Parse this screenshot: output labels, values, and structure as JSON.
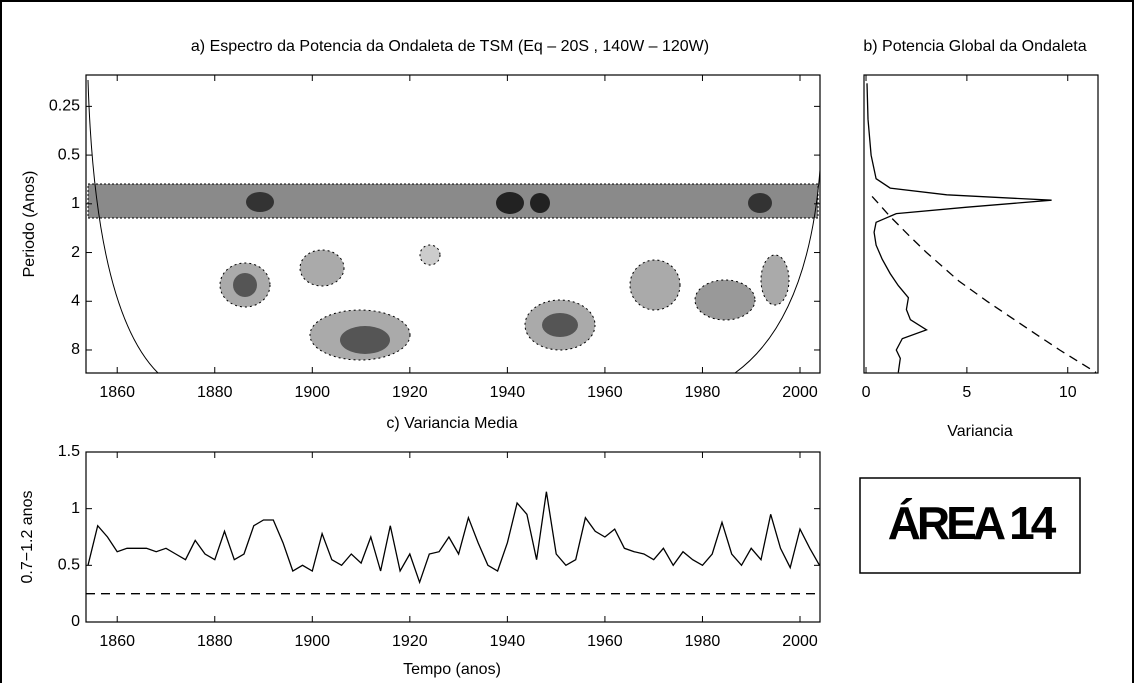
{
  "chart_data": [
    {
      "type": "contour",
      "title": "a) Espectro da Potencia da Ondaleta de TSM (Eq – 20S , 140W – 120W)",
      "ylabel": "Periodo (Anos)",
      "xlim": [
        1853.6,
        2004.1
      ],
      "xticks": [
        1860,
        1880,
        1900,
        1920,
        1940,
        1960,
        1980,
        2000
      ],
      "ylim": [
        0.16,
        11.1
      ],
      "yticks": [
        0.25,
        0.5,
        1,
        2,
        4,
        8
      ],
      "log_y": true,
      "y_inverted": true
    },
    {
      "type": "line",
      "title": "b) Potencia Global da Ondaleta",
      "xlabel": "Variancia",
      "xlim": [
        -0.1,
        11.5
      ],
      "xticks": [
        0,
        5,
        10
      ],
      "ylim": [
        0.16,
        11.1
      ],
      "log_y": true,
      "y_inverted": true,
      "series": [
        {
          "color": "#000000",
          "dashed": false,
          "x": [
            0.05,
            0.1,
            0.25,
            0.5,
            1.2,
            4,
            9.2,
            5,
            1.5,
            0.5,
            0.4,
            0.5,
            0.8,
            1.2,
            1.6,
            2.1,
            2.0,
            2.2,
            3.0,
            1.8,
            1.5,
            1.7,
            1.6
          ],
          "y": [
            0.18,
            0.3,
            0.5,
            0.7,
            0.8,
            0.88,
            0.95,
            1.05,
            1.15,
            1.3,
            1.5,
            1.8,
            2.2,
            2.7,
            3.2,
            3.8,
            4.5,
            5.2,
            6,
            6.8,
            8,
            9,
            11
          ]
        },
        {
          "color": "#000000",
          "dashed": true,
          "x": [
            0.3,
            1.2,
            2.2,
            3,
            4.6,
            6,
            8.1,
            9.6,
            11.4
          ],
          "y": [
            0.9,
            1.2,
            1.6,
            2,
            3,
            4,
            6,
            8,
            11
          ]
        }
      ]
    },
    {
      "type": "line",
      "title": "c) Variancia Media",
      "xlabel": "Tempo (anos)",
      "ylabel": "0.7−1.2 anos",
      "xlim": [
        1853.6,
        2004.1
      ],
      "xticks": [
        1860,
        1880,
        1900,
        1920,
        1940,
        1960,
        1980,
        2000
      ],
      "ylim": [
        0,
        1.5
      ],
      "yticks": [
        0,
        0.5,
        1,
        1.5
      ],
      "threshold": 0.25,
      "series": [
        {
          "color": "#000000",
          "dashed": false,
          "x": [
            1854,
            1856,
            1858,
            1860,
            1862,
            1864,
            1866,
            1868,
            1870,
            1872,
            1874,
            1876,
            1878,
            1880,
            1882,
            1884,
            1886,
            1888,
            1890,
            1892,
            1894,
            1896,
            1898,
            1900,
            1902,
            1904,
            1906,
            1908,
            1910,
            1912,
            1914,
            1916,
            1918,
            1920,
            1922,
            1924,
            1926,
            1928,
            1930,
            1932,
            1934,
            1936,
            1938,
            1940,
            1942,
            1944,
            1946,
            1948,
            1950,
            1952,
            1954,
            1956,
            1958,
            1960,
            1962,
            1964,
            1966,
            1968,
            1970,
            1972,
            1974,
            1976,
            1978,
            1980,
            1982,
            1984,
            1986,
            1988,
            1990,
            1992,
            1994,
            1996,
            1998,
            2000,
            2002,
            2004
          ],
          "y": [
            0.5,
            0.85,
            0.75,
            0.62,
            0.65,
            0.65,
            0.65,
            0.62,
            0.65,
            0.6,
            0.55,
            0.72,
            0.6,
            0.55,
            0.8,
            0.55,
            0.6,
            0.85,
            0.9,
            0.9,
            0.7,
            0.45,
            0.5,
            0.45,
            0.78,
            0.55,
            0.5,
            0.6,
            0.52,
            0.75,
            0.45,
            0.85,
            0.45,
            0.6,
            0.35,
            0.6,
            0.62,
            0.75,
            0.6,
            0.92,
            0.7,
            0.5,
            0.45,
            0.7,
            1.05,
            0.95,
            0.55,
            1.15,
            0.6,
            0.5,
            0.55,
            0.92,
            0.8,
            0.75,
            0.82,
            0.65,
            0.62,
            0.6,
            0.55,
            0.65,
            0.5,
            0.62,
            0.55,
            0.5,
            0.6,
            0.88,
            0.6,
            0.5,
            0.65,
            0.55,
            0.95,
            0.65,
            0.48,
            0.82,
            0.65,
            0.5
          ]
        }
      ]
    }
  ],
  "label": "ÁREA 14"
}
